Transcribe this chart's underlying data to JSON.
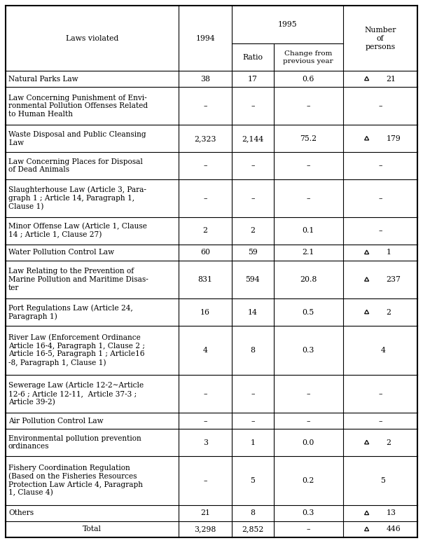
{
  "rows": [
    {
      "law": "Natural Parks Law",
      "v1994": "38",
      "ratio": "17",
      "change": "0.6",
      "triangle": true,
      "persons": "21",
      "nlines": 1
    },
    {
      "law": "Law Concerning Punishment of Envi-\nronmental Pollution Offenses Related\nto Human Health",
      "v1994": "–",
      "ratio": "–",
      "change": "–",
      "triangle": false,
      "persons": "–",
      "nlines": 3
    },
    {
      "law": "Waste Disposal and Public Cleansing\nLaw",
      "v1994": "2,323",
      "ratio": "2,144",
      "change": "75.2",
      "triangle": true,
      "persons": "179",
      "nlines": 2
    },
    {
      "law": "Law Concerning Places for Disposal\nof Dead Animals",
      "v1994": "–",
      "ratio": "–",
      "change": "–",
      "triangle": false,
      "persons": "–",
      "nlines": 2
    },
    {
      "law": "Slaughterhouse Law (Article 3, Para-\ngraph 1 ; Article 14, Paragraph 1,\nClause 1)",
      "v1994": "–",
      "ratio": "–",
      "change": "–",
      "triangle": false,
      "persons": "–",
      "nlines": 3
    },
    {
      "law": "Minor Offense Law (Article 1, Clause\n14 ; Article 1, Clause 27)",
      "v1994": "2",
      "ratio": "2",
      "change": "0.1",
      "triangle": false,
      "persons": "–",
      "nlines": 2
    },
    {
      "law": "Water Pollution Control Law",
      "v1994": "60",
      "ratio": "59",
      "change": "2.1",
      "triangle": true,
      "persons": "1",
      "nlines": 1
    },
    {
      "law": "Law Relating to the Prevention of\nMarine Pollution and Maritime Disas-\nter",
      "v1994": "831",
      "ratio": "594",
      "change": "20.8",
      "triangle": true,
      "persons": "237",
      "nlines": 3
    },
    {
      "law": "Port Regulations Law (Article 24,\nParagraph 1)",
      "v1994": "16",
      "ratio": "14",
      "change": "0.5",
      "triangle": true,
      "persons": "2",
      "nlines": 2
    },
    {
      "law": "River Law (Enforcement Ordinance\nArticle 16-4, Paragraph 1, Clause 2 ;\nArticle 16-5, Paragraph 1 ; Article16\n-8, Paragraph 1, Clause 1)",
      "v1994": "4",
      "ratio": "8",
      "change": "0.3",
      "triangle": false,
      "persons": "4",
      "nlines": 4
    },
    {
      "law": "Sewerage Law (Article 12-2∼Article\n12-6 ; Article 12-11,  Article 37-3 ;\nArticle 39-2)",
      "v1994": "–",
      "ratio": "–",
      "change": "–",
      "triangle": false,
      "persons": "–",
      "nlines": 3
    },
    {
      "law": "Air Pollution Control Law",
      "v1994": "–",
      "ratio": "–",
      "change": "–",
      "triangle": false,
      "persons": "–",
      "nlines": 1
    },
    {
      "law": "Environmental pollution prevention\nordinances",
      "v1994": "3",
      "ratio": "1",
      "change": "0.0",
      "triangle": true,
      "persons": "2",
      "nlines": 2
    },
    {
      "law": "Fishery Coordination Regulation\n(Based on the Fisheries Resources\nProtection Law Article 4, Paragraph\n1, Clause 4)",
      "v1994": "–",
      "ratio": "5",
      "change": "0.2",
      "triangle": false,
      "persons": "5",
      "nlines": 4
    },
    {
      "law": "Others",
      "v1994": "21",
      "ratio": "8",
      "change": "0.3",
      "triangle": true,
      "persons": "13",
      "nlines": 1,
      "is_total": false
    },
    {
      "law": "Total",
      "v1994": "3,298",
      "ratio": "2,852",
      "change": "–",
      "triangle": true,
      "persons": "446",
      "nlines": 1,
      "is_total": true
    }
  ],
  "font_size": 7.8,
  "col_widths_pts": [
    195,
    60,
    47,
    78,
    84
  ],
  "background_color": "#ffffff"
}
